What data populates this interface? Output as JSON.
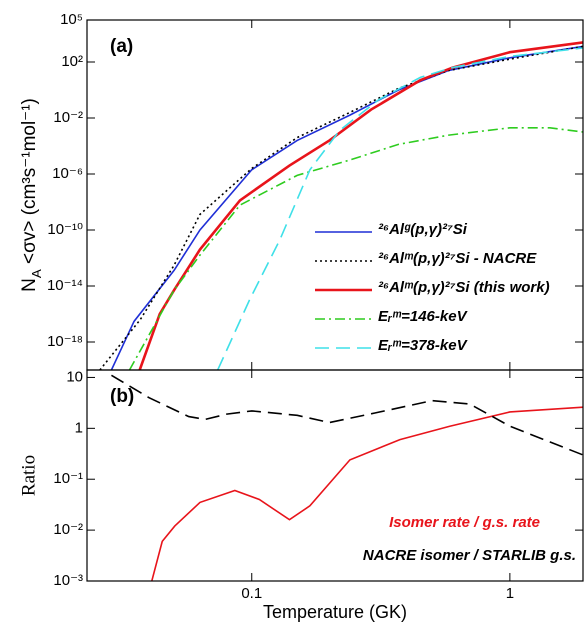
{
  "chart_data": [
    {
      "type": "line",
      "label": "(a)",
      "ylabel": "N_{A} <σv> (cm³s⁻¹mol⁻¹)",
      "xlog": true,
      "ylog": true,
      "xlim": [
        0.023,
        1.92
      ],
      "ylim": [
        1e-20,
        100000.0
      ],
      "xticks": [
        0.1,
        1
      ],
      "yticks": [
        {
          "value": 100000.0,
          "label": "10⁵"
        },
        {
          "value": 100,
          "label": "10²"
        },
        {
          "value": 0.01,
          "label": "10⁻²"
        },
        {
          "value": 1e-06,
          "label": "10⁻⁶"
        },
        {
          "value": 1e-10,
          "label": "10⁻¹⁰"
        },
        {
          "value": 1e-14,
          "label": "10⁻¹⁴"
        },
        {
          "value": 1e-18,
          "label": "10⁻¹⁸"
        }
      ],
      "legend": "lower right",
      "series": [
        {
          "name": "²⁶Alᵍ(p,γ)²⁷Si",
          "color": "#1f2fd6",
          "dash": "solid",
          "x": [
            0.0286,
            0.035,
            0.05,
            0.063,
            0.1,
            0.15,
            0.24,
            0.37,
            0.58,
            1,
            1.92
          ],
          "values": [
            1e-20,
            3e-17,
            1.3e-13,
            1e-10,
            2e-06,
            0.00025,
            0.016,
            1,
            25,
            200,
            1300
          ]
        },
        {
          "name": "²⁶Alᵐ(p,γ)²⁷Si - NACRE",
          "color": "#000000",
          "dash": "dotted",
          "x": [
            0.0258,
            0.037,
            0.05,
            0.063,
            0.1,
            0.15,
            0.24,
            0.37,
            0.58,
            1,
            1.92
          ],
          "values": [
            1e-20,
            4e-17,
            3e-13,
            1.3e-09,
            2.5e-06,
            0.0004,
            0.025,
            1.3,
            25,
            160,
            1300
          ]
        },
        {
          "name": "²⁶Alᵐ(p,γ)²⁷Si (this work)",
          "color": "#e8141b",
          "dash": "solid",
          "x": [
            0.0368,
            0.044,
            0.05,
            0.063,
            0.09,
            0.14,
            0.2,
            0.29,
            0.45,
            0.6,
            1,
            1.92
          ],
          "values": [
            1e-20,
            1e-16,
            5e-15,
            4e-12,
            1.3e-08,
            4e-06,
            0.00025,
            0.04,
            5,
            40,
            500,
            2500
          ]
        },
        {
          "name": "Eᵣᵐ=146-keV",
          "color": "#2ecc1f",
          "dash": "dashdot",
          "x": [
            0.0336,
            0.05,
            0.063,
            0.09,
            0.15,
            0.24,
            0.37,
            0.58,
            1,
            1.43,
            1.92
          ],
          "values": [
            1e-20,
            5e-15,
            1.6e-12,
            6e-09,
            8e-07,
            1e-05,
            0.00013,
            0.0006,
            0.002,
            0.002,
            0.001
          ]
        },
        {
          "name": "Eᵣᵐ=378-keV",
          "color": "#3fe0e8",
          "dash": "dashed",
          "x": [
            0.0738,
            0.098,
            0.1285,
            0.168,
            0.219,
            0.31,
            0.45,
            0.6,
            1,
            1.92
          ],
          "values": [
            1e-20,
            1e-15,
            2e-11,
            2e-06,
            0.0013,
            0.2,
            8,
            40,
            250,
            1000
          ]
        }
      ]
    },
    {
      "type": "line",
      "label": "(b)",
      "xlabel": "Temperature (GK)",
      "ylabel": "Ratio",
      "xlog": true,
      "ylog": true,
      "xlim": [
        0.023,
        1.92
      ],
      "ylim": [
        0.001,
        14
      ],
      "xticks": [
        0.1,
        1
      ],
      "yticks": [
        10,
        1,
        {
          "value": 0.1,
          "label": "10⁻¹"
        },
        {
          "value": 0.01,
          "label": "10⁻²"
        },
        {
          "value": 0.001,
          "label": "10⁻³"
        }
      ],
      "legend": "lower right",
      "series": [
        {
          "name": "Isomer rate / g.s. rate",
          "color": "#e8141b",
          "dash": "solid",
          "x": [
            0.041,
            0.045,
            0.0503,
            0.063,
            0.086,
            0.107,
            0.14,
            0.168,
            0.24,
            0.375,
            0.585,
            1,
            1.92
          ],
          "values": [
            0.001,
            0.006,
            0.012,
            0.035,
            0.06,
            0.04,
            0.016,
            0.03,
            0.24,
            0.6,
            1.1,
            2.1,
            2.6
          ]
        },
        {
          "name": "NACRE isomer / STARLIB g.s.",
          "color": "#000000",
          "dash": "dashed",
          "x": [
            0.0286,
            0.04,
            0.057,
            0.066,
            0.08,
            0.1,
            0.15,
            0.2,
            0.3,
            0.5,
            0.7,
            1,
            1.92
          ],
          "values": [
            11,
            4,
            1.7,
            1.5,
            1.9,
            2.2,
            1.8,
            1.3,
            2.0,
            3.5,
            3.0,
            1.1,
            0.3
          ]
        }
      ]
    }
  ]
}
